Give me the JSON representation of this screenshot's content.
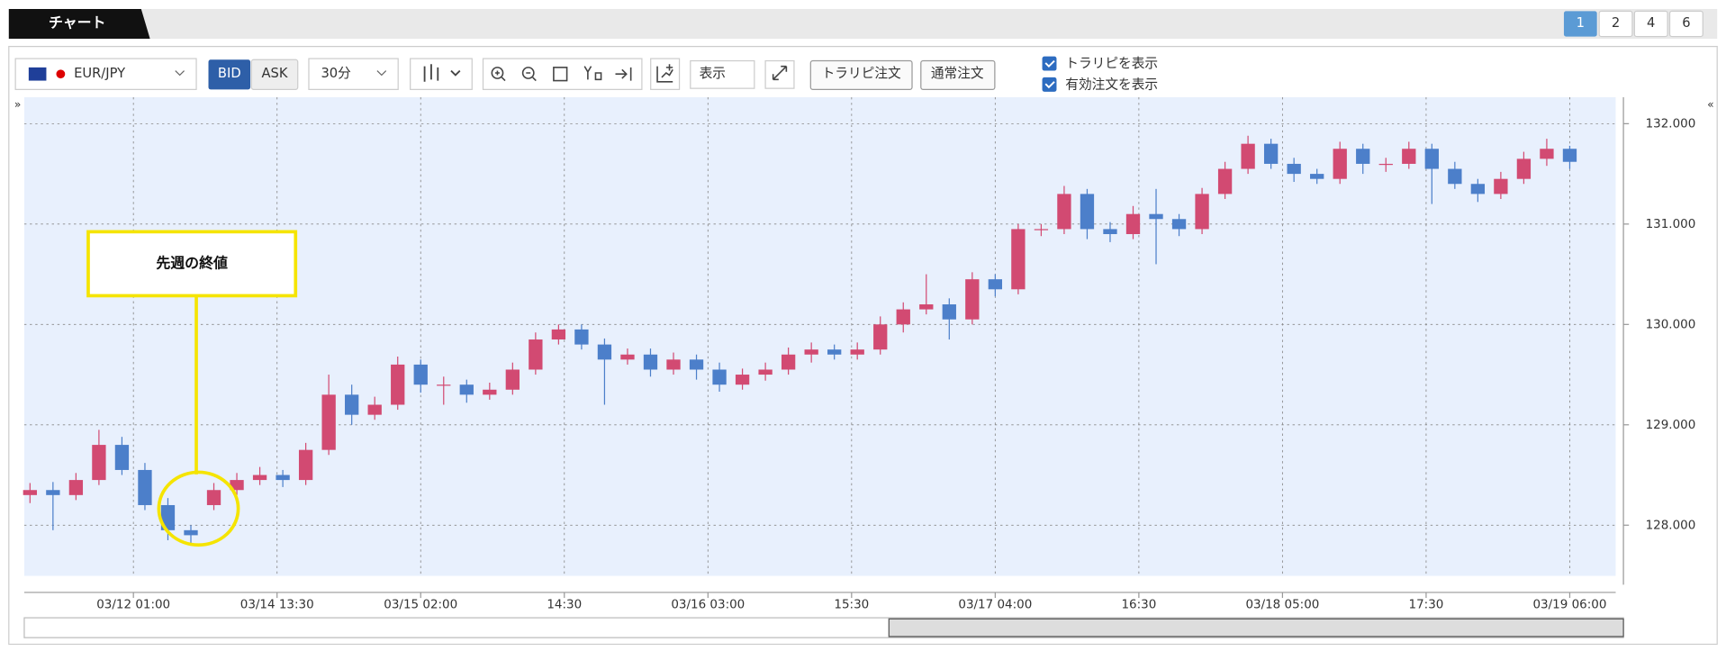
{
  "ui": {
    "tab": "チャート",
    "pages": [
      "1",
      "2",
      "4",
      "6"
    ],
    "pair": "EUR/JPY",
    "bid": "BID",
    "ask": "ASK",
    "interval": "30分",
    "display": "表示",
    "trarepi_order": "トラリピ注文",
    "normal_order": "通常注文",
    "show_trarepi": "トラリピを表示",
    "show_orders": "有効注文を表示"
  },
  "chart_data": {
    "type": "candlestick",
    "annotation": "先週の終値",
    "up_color": "#d24a72",
    "down_color": "#4c7fca",
    "grid": true,
    "x": [
      1,
      5,
      9,
      13,
      17,
      21,
      25,
      29,
      33,
      37,
      41,
      45,
      49,
      53,
      57,
      61,
      65,
      69,
      73,
      77,
      81,
      85,
      89,
      93,
      97,
      101,
      105,
      109,
      113,
      117,
      121,
      125,
      129,
      133,
      137,
      141,
      145,
      149,
      153,
      157,
      161,
      165,
      169,
      173,
      177,
      181,
      185,
      189,
      193,
      197,
      201,
      205,
      209,
      213,
      217,
      221,
      225,
      229,
      233,
      237,
      241,
      245,
      249,
      253,
      257,
      261,
      265,
      269
    ],
    "open": [
      128.3,
      128.35,
      128.3,
      128.45,
      128.8,
      128.55,
      128.2,
      127.95,
      128.2,
      128.35,
      128.45,
      128.5,
      128.45,
      128.75,
      129.3,
      129.1,
      129.2,
      129.6,
      129.4,
      129.4,
      129.3,
      129.35,
      129.55,
      129.85,
      129.95,
      129.8,
      129.65,
      129.7,
      129.55,
      129.65,
      129.55,
      129.4,
      129.5,
      129.55,
      129.7,
      129.75,
      129.7,
      129.75,
      130.0,
      130.15,
      130.2,
      130.05,
      130.45,
      130.35,
      130.95,
      130.95,
      131.3,
      130.95,
      130.9,
      131.1,
      131.05,
      130.95,
      131.3,
      131.55,
      131.8,
      131.6,
      131.5,
      131.45,
      131.75,
      131.6,
      131.6,
      131.75,
      131.55,
      131.4,
      131.3,
      131.45,
      131.65,
      131.75
    ],
    "high": [
      128.42,
      128.43,
      128.52,
      128.95,
      128.88,
      128.62,
      128.27,
      128.0,
      128.42,
      128.52,
      128.58,
      128.55,
      128.82,
      129.5,
      129.4,
      129.28,
      129.68,
      129.65,
      129.48,
      129.45,
      129.42,
      129.62,
      129.92,
      130.0,
      130.0,
      129.86,
      129.76,
      129.76,
      129.72,
      129.7,
      129.62,
      129.56,
      129.62,
      129.77,
      129.82,
      129.8,
      129.82,
      130.08,
      130.22,
      130.5,
      130.26,
      130.52,
      130.5,
      131.0,
      131.0,
      131.38,
      131.35,
      131.02,
      131.18,
      131.35,
      131.1,
      131.36,
      131.62,
      131.88,
      131.85,
      131.66,
      131.55,
      131.82,
      131.8,
      131.66,
      131.82,
      131.8,
      131.62,
      131.45,
      131.52,
      131.72,
      131.85,
      131.78
    ],
    "low": [
      128.22,
      127.95,
      128.25,
      128.4,
      128.5,
      128.15,
      127.85,
      127.82,
      128.15,
      128.3,
      128.4,
      128.38,
      128.4,
      128.7,
      129.0,
      129.05,
      129.15,
      129.32,
      129.2,
      129.22,
      129.25,
      129.3,
      129.5,
      129.8,
      129.75,
      129.2,
      129.6,
      129.48,
      129.5,
      129.45,
      129.33,
      129.35,
      129.44,
      129.5,
      129.62,
      129.65,
      129.65,
      129.7,
      129.92,
      130.1,
      129.85,
      130.0,
      130.28,
      130.3,
      130.88,
      130.9,
      130.85,
      130.82,
      130.85,
      130.6,
      130.88,
      130.9,
      131.25,
      131.5,
      131.55,
      131.42,
      131.4,
      131.4,
      131.5,
      131.52,
      131.55,
      131.2,
      131.35,
      131.22,
      131.25,
      131.4,
      131.58,
      131.55
    ],
    "close": [
      128.35,
      128.3,
      128.45,
      128.8,
      128.55,
      128.2,
      127.95,
      127.9,
      128.35,
      128.45,
      128.5,
      128.45,
      128.75,
      129.3,
      129.1,
      129.2,
      129.6,
      129.4,
      129.4,
      129.3,
      129.35,
      129.55,
      129.85,
      129.95,
      129.8,
      129.65,
      129.7,
      129.55,
      129.65,
      129.55,
      129.4,
      129.5,
      129.55,
      129.7,
      129.75,
      129.7,
      129.75,
      130.0,
      130.15,
      130.2,
      130.05,
      130.45,
      130.35,
      130.95,
      130.95,
      131.3,
      130.95,
      130.9,
      131.1,
      131.05,
      130.95,
      131.3,
      131.55,
      131.8,
      131.6,
      131.5,
      131.45,
      131.75,
      131.6,
      131.6,
      131.75,
      131.55,
      131.4,
      131.3,
      131.45,
      131.65,
      131.75,
      131.62
    ],
    "xlim": [
      0,
      277
    ],
    "xticks": [
      {
        "value": 19,
        "label": "03/12 01:00"
      },
      {
        "value": 44,
        "label": "03/14 13:30"
      },
      {
        "value": 69,
        "label": "03/15 02:00"
      },
      {
        "value": 94,
        "label": "14:30"
      },
      {
        "value": 119,
        "label": "03/16 03:00"
      },
      {
        "value": 144,
        "label": "15:30"
      },
      {
        "value": 169,
        "label": "03/17 04:00"
      },
      {
        "value": 194,
        "label": "16:30"
      },
      {
        "value": 219,
        "label": "03/18 05:00"
      },
      {
        "value": 244,
        "label": "17:30"
      },
      {
        "value": 269,
        "label": "03/19 06:00"
      }
    ],
    "ylim": [
      127.495,
      132.264
    ],
    "yticks": [
      {
        "value": 128,
        "label": "128.000"
      },
      {
        "value": 129,
        "label": "129.000"
      },
      {
        "value": 130,
        "label": "130.000"
      },
      {
        "value": 131,
        "label": "131.000"
      },
      {
        "value": 132,
        "label": "132.000"
      }
    ]
  }
}
